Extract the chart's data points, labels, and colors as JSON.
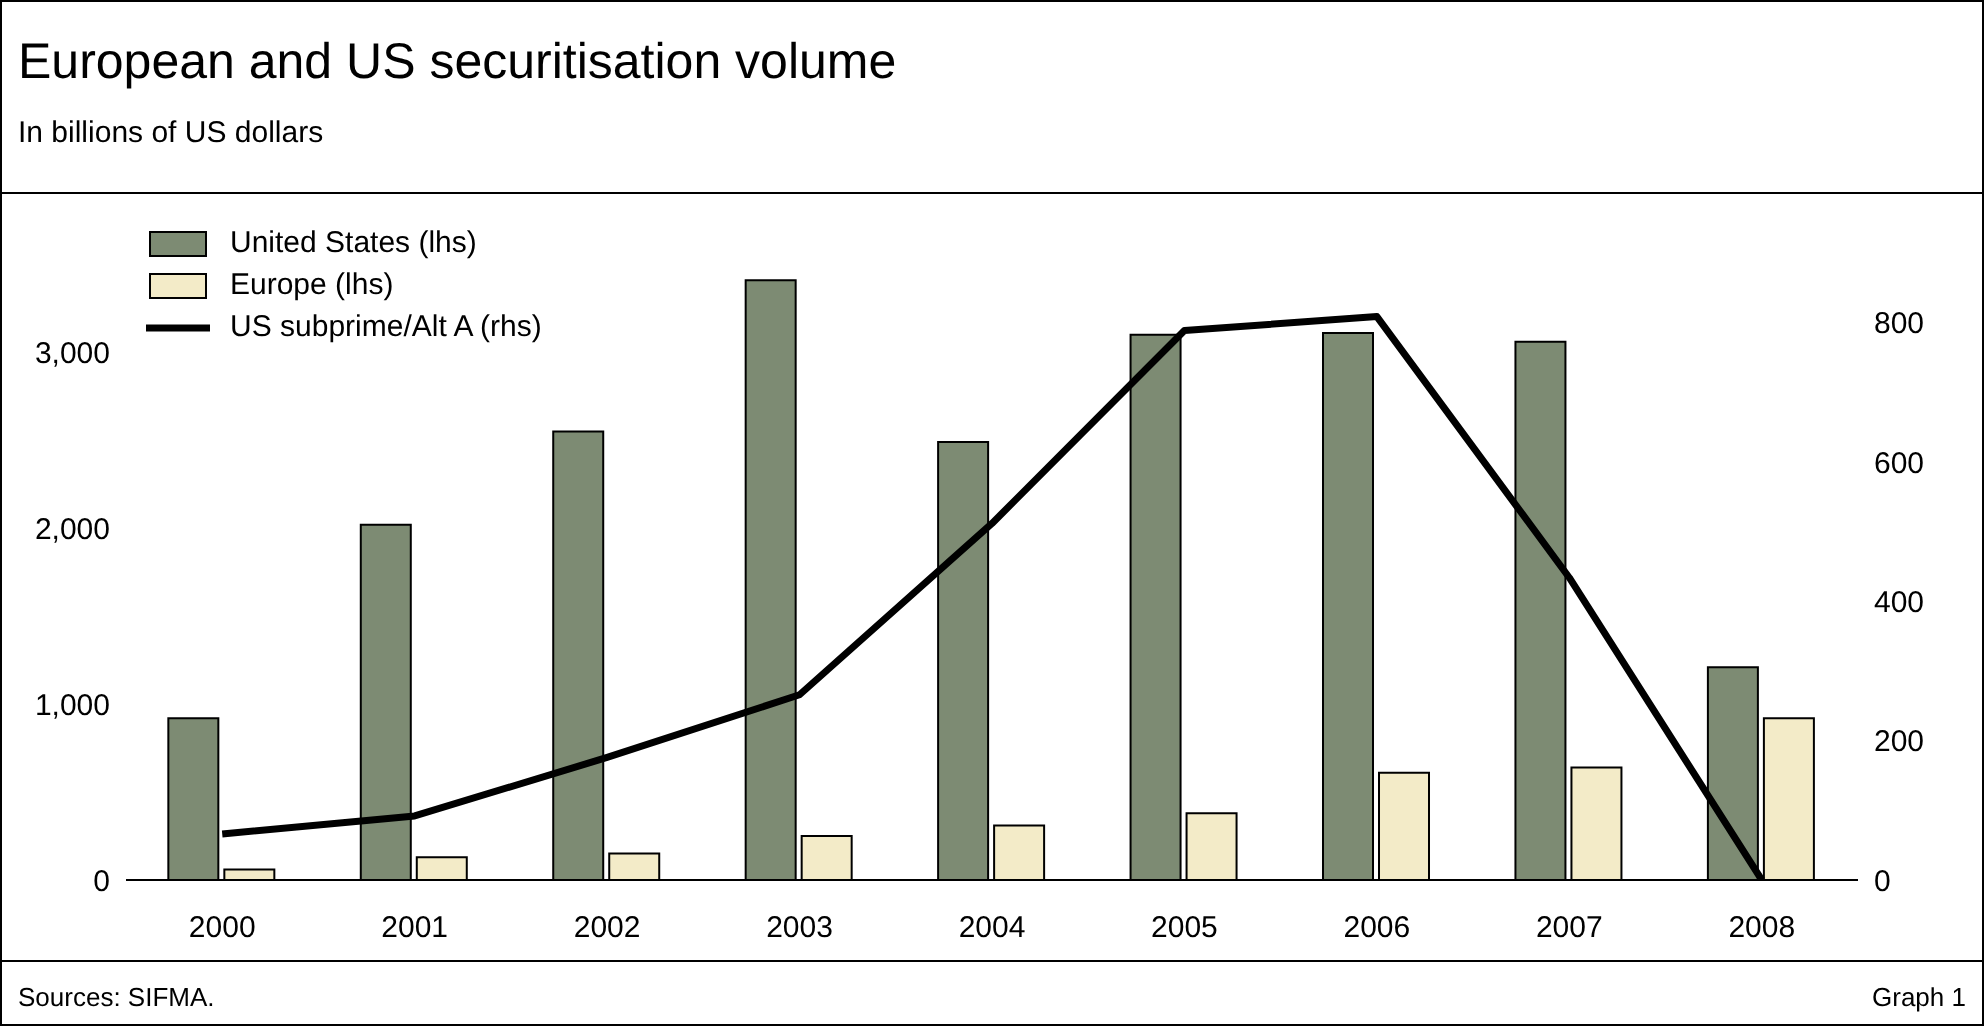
{
  "chart_data": {
    "type": "bar",
    "title": "European and US securitisation volume",
    "subtitle": "In billions of US dollars",
    "categories": [
      "2000",
      "2001",
      "2002",
      "2003",
      "2004",
      "2005",
      "2006",
      "2007",
      "2008"
    ],
    "series": [
      {
        "name": "United States (lhs)",
        "color": "#7d8b73",
        "values": [
          920,
          2020,
          2550,
          3410,
          2490,
          3100,
          3110,
          3060,
          1210
        ]
      },
      {
        "name": "Europe (lhs)",
        "color": "#f3ebc8",
        "values": [
          60,
          130,
          150,
          250,
          310,
          380,
          610,
          640,
          920
        ]
      },
      {
        "name": "US subprime/Alt A (rhs)",
        "type": "line",
        "axis": "y2",
        "color": "#000000",
        "values": [
          66,
          92,
          176,
          266,
          512,
          789,
          809,
          434,
          0
        ]
      }
    ],
    "ylim": [
      0,
      3900
    ],
    "yticks": [
      0,
      {
        "value": 1000,
        "label": "1,000"
      },
      {
        "value": 2000,
        "label": "2,000"
      },
      {
        "value": 3000,
        "label": "3,000"
      }
    ],
    "y2lim": [
      0,
      985
    ],
    "y2ticks": [
      0,
      200,
      400,
      600,
      800
    ],
    "grid": false,
    "legend": "top left",
    "marker": "none",
    "line_style": "solid",
    "annotations": [
      "Sources: SIFMA.",
      "Graph 1"
    ]
  }
}
